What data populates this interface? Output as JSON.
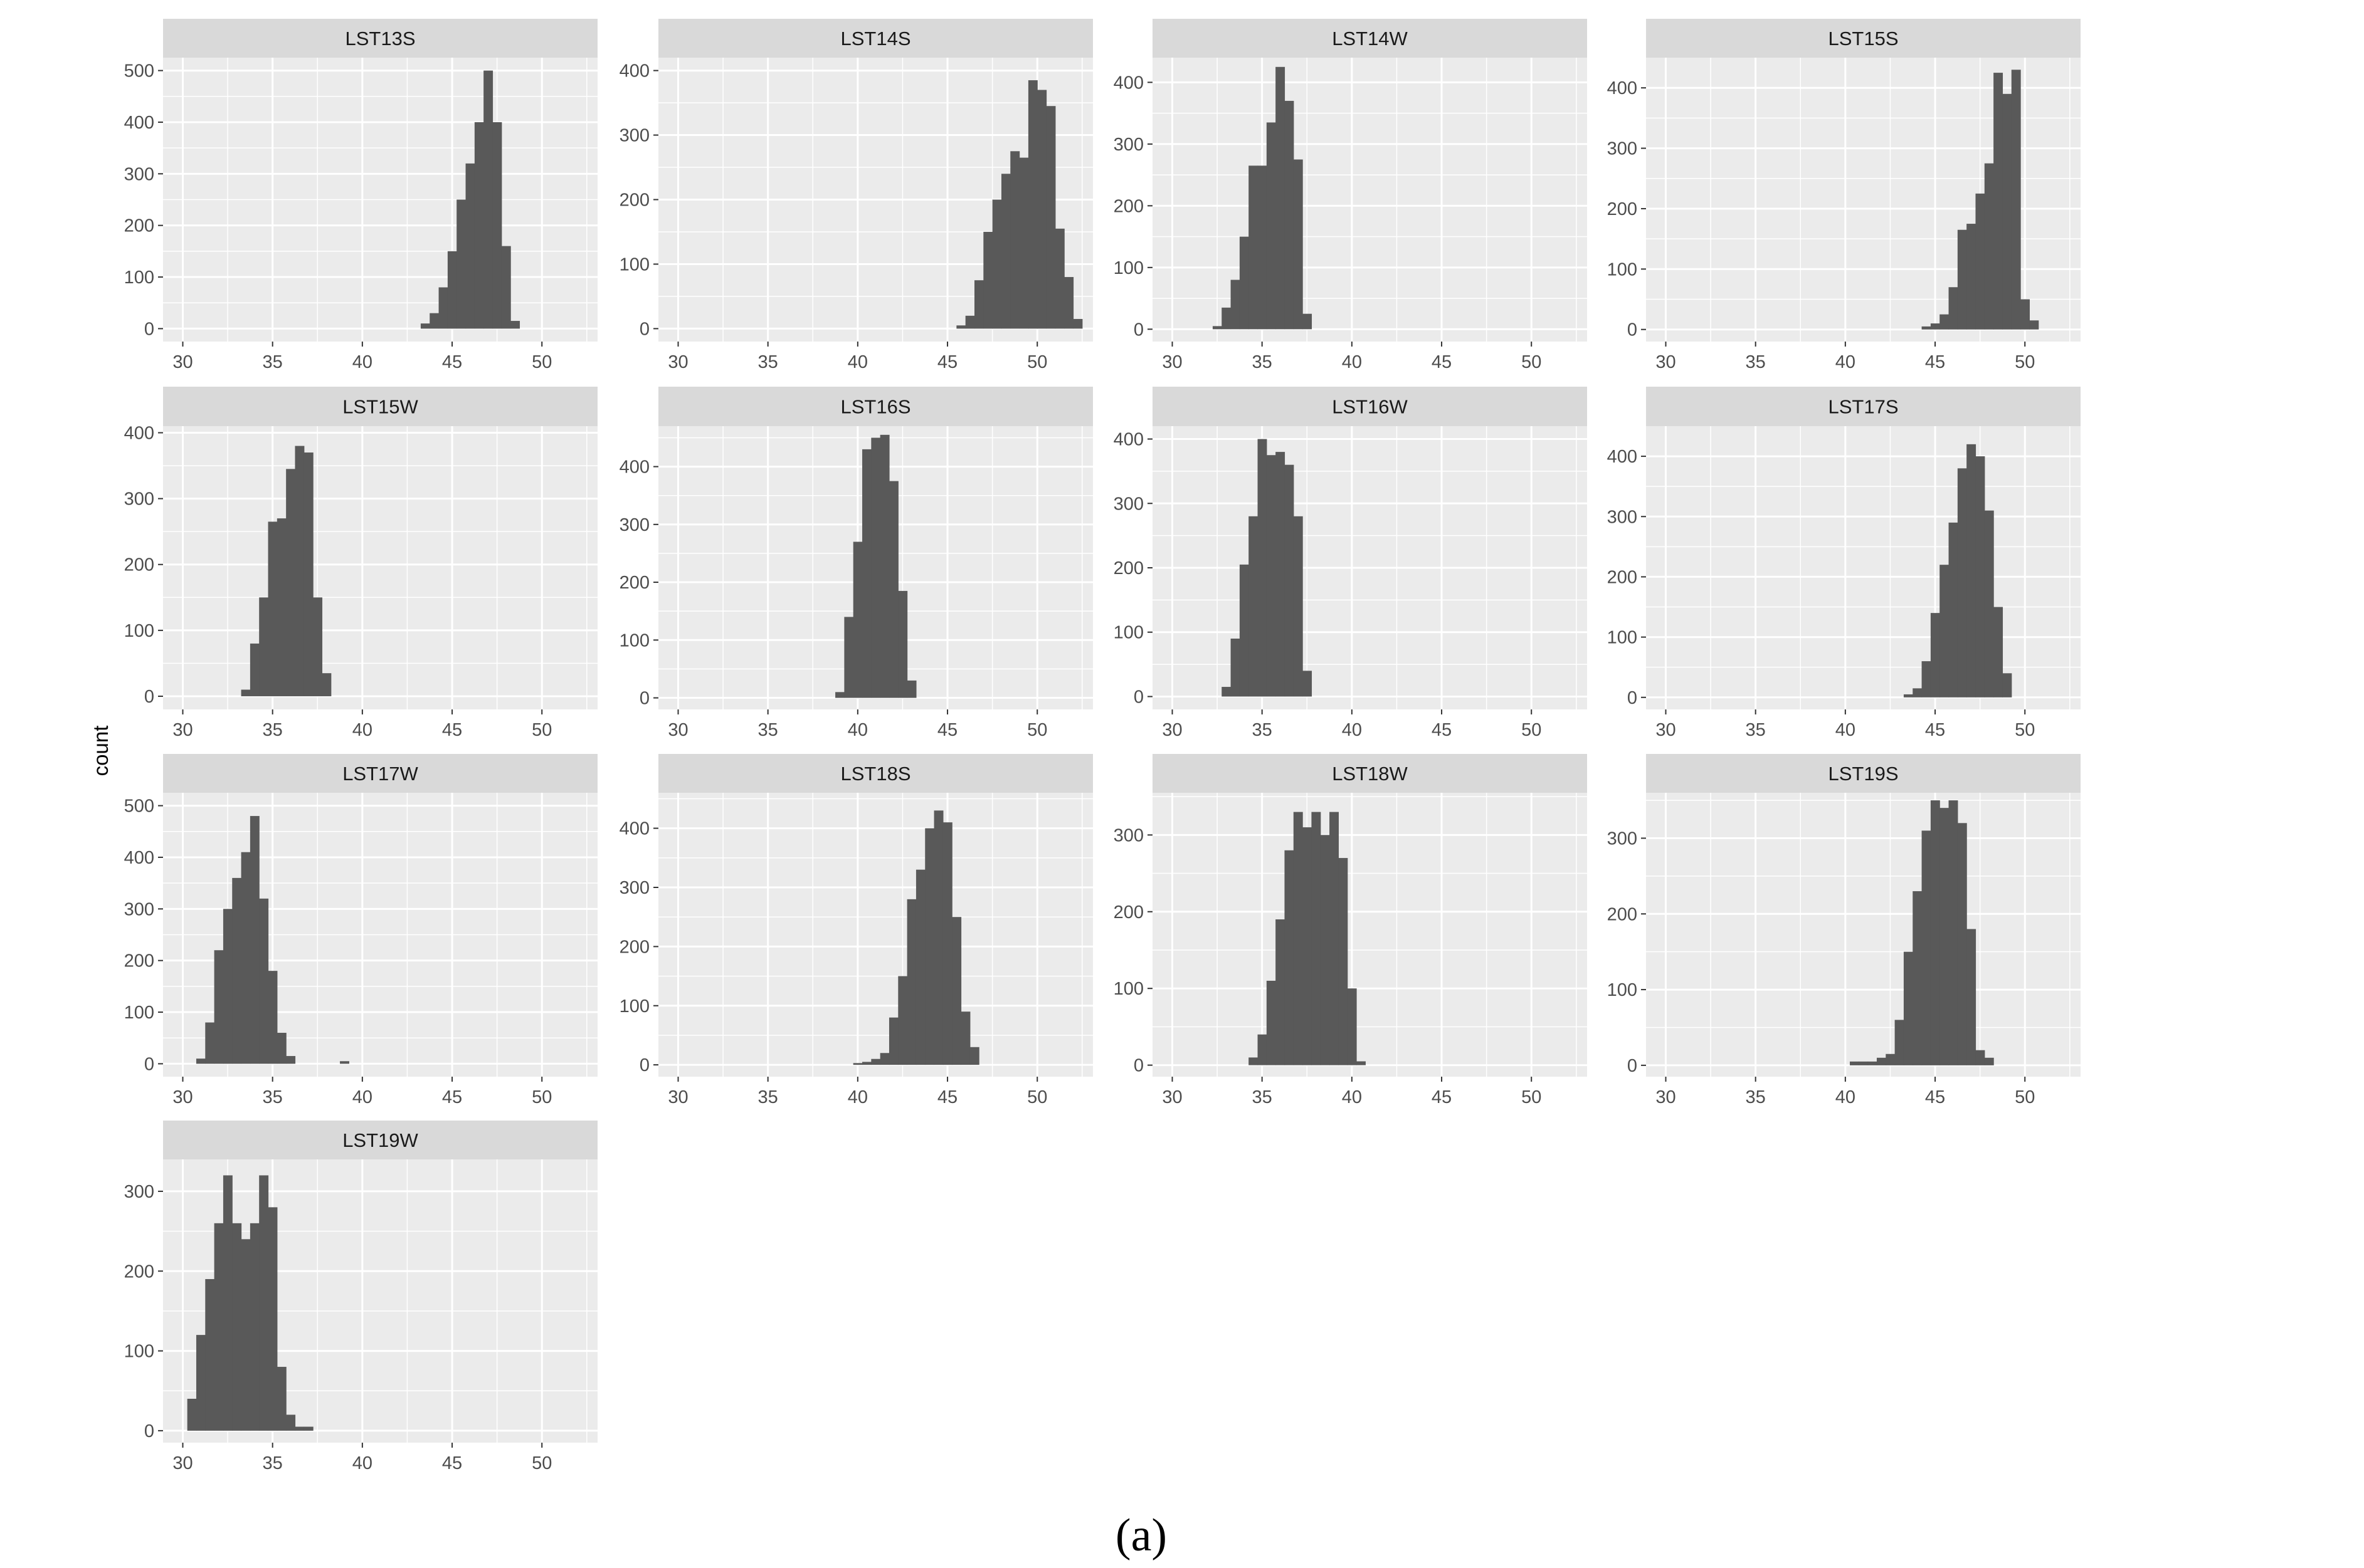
{
  "y_axis_label": "count",
  "caption": "(a)",
  "colors": {
    "panel_bg": "#EBEBEB",
    "strip_bg": "#D9D9D9",
    "grid": "#FFFFFF",
    "bar": "#595959",
    "tick_text": "#4D4D4D",
    "strip_text": "#1A1A1A"
  },
  "chart_data": [
    {
      "type": "bar",
      "title": "LST13S",
      "xlim": [
        28.9,
        53.1
      ],
      "ylim": [
        -25,
        525
      ],
      "x_ticks": [
        30,
        35,
        40,
        45,
        50
      ],
      "y_ticks": [
        0,
        100,
        200,
        300,
        400,
        500
      ],
      "bin_width": 0.5,
      "bins_start": [
        43.25,
        43.75,
        44.25,
        44.75,
        45.25,
        45.75,
        46.25,
        46.75,
        47.25,
        47.75,
        48.25
      ],
      "values": [
        10,
        30,
        80,
        150,
        250,
        320,
        400,
        500,
        400,
        160,
        15
      ]
    },
    {
      "type": "bar",
      "title": "LST14S",
      "xlim": [
        28.9,
        53.1
      ],
      "ylim": [
        -20,
        420
      ],
      "x_ticks": [
        30,
        35,
        40,
        45,
        50
      ],
      "y_ticks": [
        0,
        100,
        200,
        300,
        400
      ],
      "bin_width": 0.5,
      "bins_start": [
        45.5,
        46.0,
        46.5,
        47.0,
        47.5,
        48.0,
        48.5,
        49.0,
        49.5,
        50.0,
        50.5,
        51.0,
        51.5,
        52.0
      ],
      "values": [
        5,
        20,
        75,
        150,
        200,
        240,
        275,
        265,
        385,
        370,
        345,
        155,
        80,
        15
      ]
    },
    {
      "type": "bar",
      "title": "LST14W",
      "xlim": [
        28.9,
        53.1
      ],
      "ylim": [
        -20,
        440
      ],
      "x_ticks": [
        30,
        35,
        40,
        45,
        50
      ],
      "y_ticks": [
        0,
        100,
        200,
        300,
        400
      ],
      "bin_width": 0.5,
      "bins_start": [
        32.25,
        32.75,
        33.25,
        33.75,
        34.25,
        34.75,
        35.25,
        35.75,
        36.25,
        36.75,
        37.25
      ],
      "values": [
        5,
        35,
        80,
        150,
        265,
        265,
        335,
        425,
        370,
        275,
        25
      ]
    },
    {
      "type": "bar",
      "title": "LST15S",
      "xlim": [
        28.9,
        53.1
      ],
      "ylim": [
        -20,
        450
      ],
      "x_ticks": [
        30,
        35,
        40,
        45,
        50
      ],
      "y_ticks": [
        0,
        100,
        200,
        300,
        400
      ],
      "bin_width": 0.5,
      "bins_start": [
        44.25,
        44.75,
        45.25,
        45.75,
        46.25,
        46.75,
        47.25,
        47.75,
        48.25,
        48.75,
        49.25,
        49.75,
        50.25
      ],
      "values": [
        5,
        10,
        25,
        70,
        165,
        175,
        225,
        275,
        425,
        390,
        430,
        50,
        15
      ]
    },
    {
      "type": "bar",
      "title": "LST15W",
      "xlim": [
        28.9,
        53.1
      ],
      "ylim": [
        -20,
        410
      ],
      "x_ticks": [
        30,
        35,
        40,
        45,
        50
      ],
      "y_ticks": [
        0,
        100,
        200,
        300,
        400
      ],
      "bin_width": 0.5,
      "bins_start": [
        33.25,
        33.75,
        34.25,
        34.75,
        35.25,
        35.75,
        36.25,
        36.75,
        37.25,
        37.75
      ],
      "values": [
        10,
        80,
        150,
        265,
        270,
        345,
        380,
        370,
        150,
        35
      ]
    },
    {
      "type": "bar",
      "title": "LST16S",
      "xlim": [
        28.9,
        53.1
      ],
      "ylim": [
        -20,
        470
      ],
      "x_ticks": [
        30,
        35,
        40,
        45,
        50
      ],
      "y_ticks": [
        0,
        100,
        200,
        300,
        400
      ],
      "bin_width": 0.5,
      "bins_start": [
        38.75,
        39.25,
        39.75,
        40.25,
        40.75,
        41.25,
        41.75,
        42.25,
        42.75
      ],
      "values": [
        10,
        140,
        270,
        430,
        450,
        455,
        375,
        185,
        30
      ]
    },
    {
      "type": "bar",
      "title": "LST16W",
      "xlim": [
        28.9,
        53.1
      ],
      "ylim": [
        -20,
        420
      ],
      "x_ticks": [
        30,
        35,
        40,
        45,
        50
      ],
      "y_ticks": [
        0,
        100,
        200,
        300,
        400
      ],
      "bin_width": 0.5,
      "bins_start": [
        32.75,
        33.25,
        33.75,
        34.25,
        34.75,
        35.25,
        35.75,
        36.25,
        36.75,
        37.25
      ],
      "values": [
        15,
        90,
        205,
        280,
        400,
        375,
        380,
        360,
        280,
        40
      ]
    },
    {
      "type": "bar",
      "title": "LST17S",
      "xlim": [
        28.9,
        53.1
      ],
      "ylim": [
        -20,
        450
      ],
      "x_ticks": [
        30,
        35,
        40,
        45,
        50
      ],
      "y_ticks": [
        0,
        100,
        200,
        300,
        400
      ],
      "bin_width": 0.5,
      "bins_start": [
        43.25,
        43.75,
        44.25,
        44.75,
        45.25,
        45.75,
        46.25,
        46.75,
        47.25,
        47.75,
        48.25,
        48.75
      ],
      "values": [
        5,
        15,
        60,
        140,
        220,
        290,
        380,
        420,
        400,
        310,
        150,
        40
      ]
    },
    {
      "type": "bar",
      "title": "LST17W",
      "xlim": [
        28.9,
        53.1
      ],
      "ylim": [
        -25,
        525
      ],
      "x_ticks": [
        30,
        35,
        40,
        45,
        50
      ],
      "y_ticks": [
        0,
        100,
        200,
        300,
        400,
        500
      ],
      "bin_width": 0.5,
      "bins_start": [
        30.75,
        31.25,
        31.75,
        32.25,
        32.75,
        33.25,
        33.75,
        34.25,
        34.75,
        35.25,
        35.75,
        38.75
      ],
      "values": [
        10,
        80,
        220,
        300,
        360,
        410,
        480,
        320,
        180,
        60,
        15,
        5
      ]
    },
    {
      "type": "bar",
      "title": "LST18S",
      "xlim": [
        28.9,
        53.1
      ],
      "ylim": [
        -20,
        460
      ],
      "x_ticks": [
        30,
        35,
        40,
        45,
        50
      ],
      "y_ticks": [
        0,
        100,
        200,
        300,
        400
      ],
      "bin_width": 0.5,
      "bins_start": [
        39.75,
        40.25,
        40.75,
        41.25,
        41.75,
        42.25,
        42.75,
        43.25,
        43.75,
        44.25,
        44.75,
        45.25,
        45.75,
        46.25
      ],
      "values": [
        3,
        5,
        10,
        20,
        80,
        150,
        280,
        330,
        400,
        430,
        410,
        250,
        90,
        30
      ]
    },
    {
      "type": "bar",
      "title": "LST18W",
      "xlim": [
        28.9,
        53.1
      ],
      "ylim": [
        -15,
        355
      ],
      "x_ticks": [
        30,
        35,
        40,
        45,
        50
      ],
      "y_ticks": [
        0,
        100,
        200,
        300
      ],
      "bin_width": 0.5,
      "bins_start": [
        34.25,
        34.75,
        35.25,
        35.75,
        36.25,
        36.75,
        37.25,
        37.75,
        38.25,
        38.75,
        39.25,
        39.75,
        40.25
      ],
      "values": [
        10,
        40,
        110,
        190,
        280,
        330,
        310,
        330,
        300,
        330,
        270,
        100,
        5
      ]
    },
    {
      "type": "bar",
      "title": "LST19S",
      "xlim": [
        28.9,
        53.1
      ],
      "ylim": [
        -15,
        360
      ],
      "x_ticks": [
        30,
        35,
        40,
        45,
        50
      ],
      "y_ticks": [
        0,
        100,
        200,
        300
      ],
      "bin_width": 0.5,
      "bins_start": [
        40.25,
        40.75,
        41.25,
        41.75,
        42.25,
        42.75,
        43.25,
        43.75,
        44.25,
        44.75,
        45.25,
        45.75,
        46.25,
        46.75,
        47.25,
        47.75
      ],
      "values": [
        5,
        5,
        5,
        10,
        15,
        60,
        150,
        230,
        310,
        350,
        340,
        350,
        320,
        180,
        20,
        10
      ]
    },
    {
      "type": "bar",
      "title": "LST19W",
      "xlim": [
        28.9,
        53.1
      ],
      "ylim": [
        -15,
        340
      ],
      "x_ticks": [
        30,
        35,
        40,
        45,
        50
      ],
      "y_ticks": [
        0,
        100,
        200,
        300
      ],
      "bin_width": 0.5,
      "bins_start": [
        30.25,
        30.75,
        31.25,
        31.75,
        32.25,
        32.75,
        33.25,
        33.75,
        34.25,
        34.75,
        35.25,
        35.75,
        36.25,
        36.75
      ],
      "values": [
        40,
        120,
        190,
        260,
        320,
        260,
        240,
        260,
        320,
        280,
        80,
        20,
        5,
        5
      ]
    }
  ]
}
